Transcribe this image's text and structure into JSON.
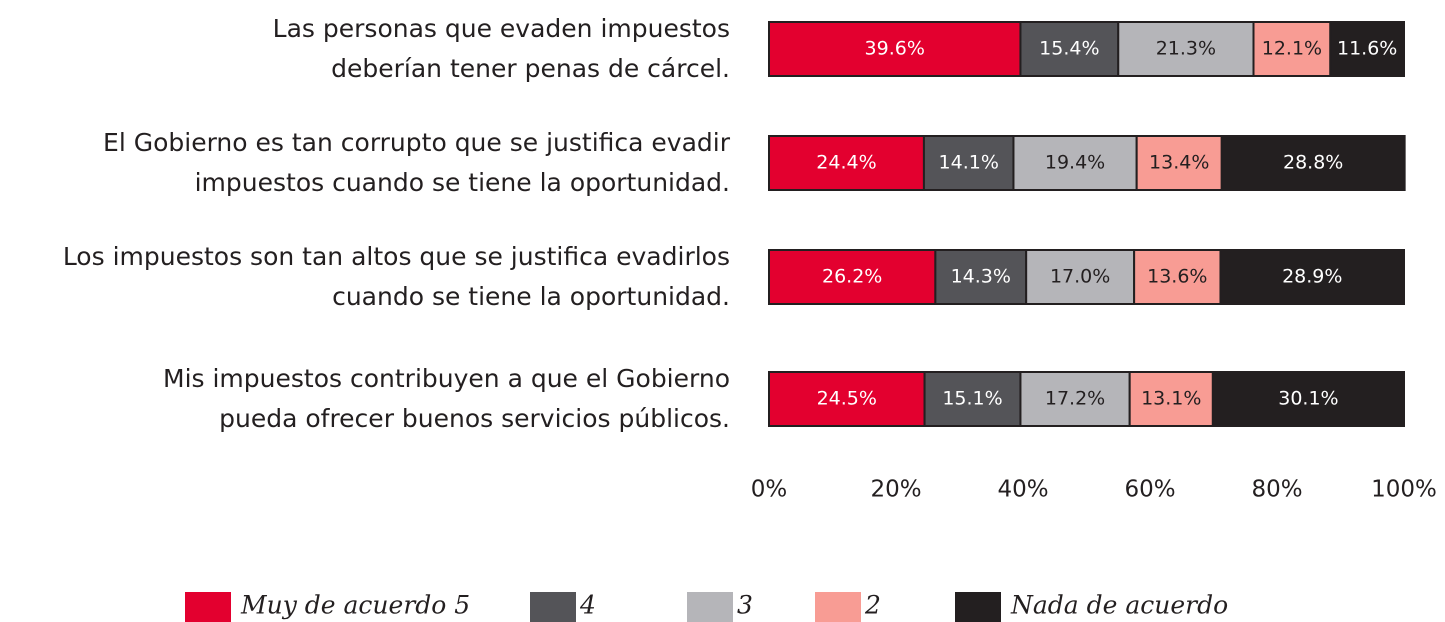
{
  "chart_data": {
    "type": "stacked-bar-horizontal",
    "categories": [
      [
        "Las personas que evaden impuestos",
        "deberían tener penas de cárcel."
      ],
      [
        "El Gobierno es tan corrupto que se justifica evadir",
        "impuestos cuando se tiene la oportunidad."
      ],
      [
        "Los impuestos son tan altos que se justifica evadirlos",
        "cuando se tiene la oportunidad."
      ],
      [
        "Mis impuestos contribuyen a que el Gobierno",
        "pueda ofrecer buenos servicios públicos."
      ]
    ],
    "series": [
      {
        "name": "Muy de acuerdo 5",
        "color": "#e3002f",
        "values": [
          39.6,
          24.4,
          26.2,
          24.5
        ],
        "value_labels": [
          "39.6%",
          "24.4%",
          "26.2%",
          "24.5%"
        ]
      },
      {
        "name": "4",
        "color": "#545458",
        "values": [
          15.4,
          14.1,
          14.3,
          15.1
        ],
        "value_labels": [
          "15.4%",
          "14.1%",
          "14.3%",
          "15.1%"
        ]
      },
      {
        "name": "3",
        "color": "#b5b5b9",
        "values": [
          21.3,
          19.4,
          17.0,
          17.2
        ],
        "value_labels": [
          "21.3%",
          "19.4%",
          "17.0%",
          "17.2%"
        ]
      },
      {
        "name": "2",
        "color": "#f89c94",
        "values": [
          12.1,
          13.4,
          13.6,
          13.1
        ],
        "value_labels": [
          "12.1%",
          "13.4%",
          "13.6%",
          "13.1%"
        ]
      },
      {
        "name": "Nada de acuerdo",
        "color": "#231f20",
        "values": [
          11.6,
          28.8,
          28.9,
          30.1
        ],
        "value_labels": [
          "11.6%",
          "28.8%",
          "28.9%",
          "30.1%"
        ]
      }
    ],
    "xlim": [
      0,
      100
    ],
    "xticks": [
      {
        "value": 0,
        "label": "0%"
      },
      {
        "value": 20,
        "label": "20%"
      },
      {
        "value": 40,
        "label": "40%"
      },
      {
        "value": 60,
        "label": "60%"
      },
      {
        "value": 80,
        "label": "80%"
      },
      {
        "value": 100,
        "label": "100%"
      }
    ],
    "legend": "bottom"
  }
}
